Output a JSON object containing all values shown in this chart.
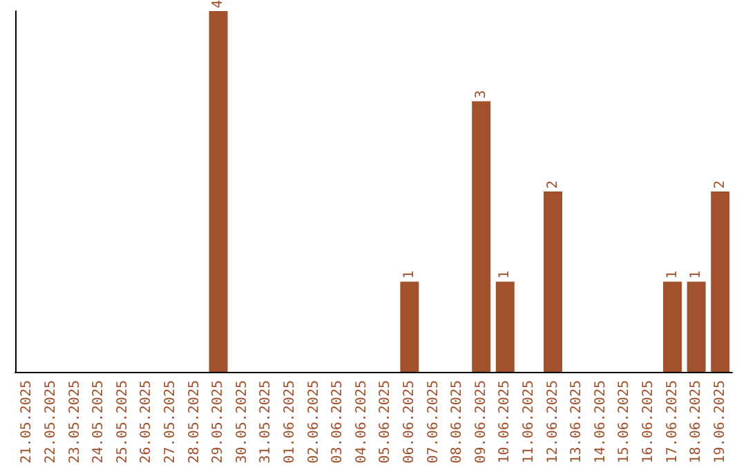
{
  "chart_data": {
    "type": "bar",
    "categories": [
      "21.05.2025",
      "22.05.2025",
      "23.05.2025",
      "24.05.2025",
      "25.05.2025",
      "26.05.2025",
      "27.05.2025",
      "28.05.2025",
      "29.05.2025",
      "30.05.2025",
      "31.05.2025",
      "01.06.2025",
      "02.06.2025",
      "03.06.2025",
      "04.06.2025",
      "05.06.2025",
      "06.06.2025",
      "07.06.2025",
      "08.06.2025",
      "09.06.2025",
      "10.06.2025",
      "11.06.2025",
      "12.06.2025",
      "13.06.2025",
      "14.06.2025",
      "15.06.2025",
      "16.06.2025",
      "17.06.2025",
      "18.06.2025",
      "19.06.2025"
    ],
    "values": [
      0,
      0,
      0,
      0,
      0,
      0,
      0,
      0,
      4,
      0,
      0,
      0,
      0,
      0,
      0,
      0,
      1,
      0,
      0,
      3,
      1,
      0,
      2,
      0,
      0,
      0,
      0,
      1,
      1,
      2
    ],
    "value_labels": [
      null,
      null,
      null,
      null,
      null,
      null,
      null,
      null,
      "4",
      null,
      null,
      null,
      null,
      null,
      null,
      null,
      "1",
      null,
      null,
      "3",
      "1",
      null,
      "2",
      null,
      null,
      null,
      null,
      "1",
      "1",
      "2"
    ],
    "color": "#a0522d",
    "tick_labels": "x",
    "grid": false
  }
}
